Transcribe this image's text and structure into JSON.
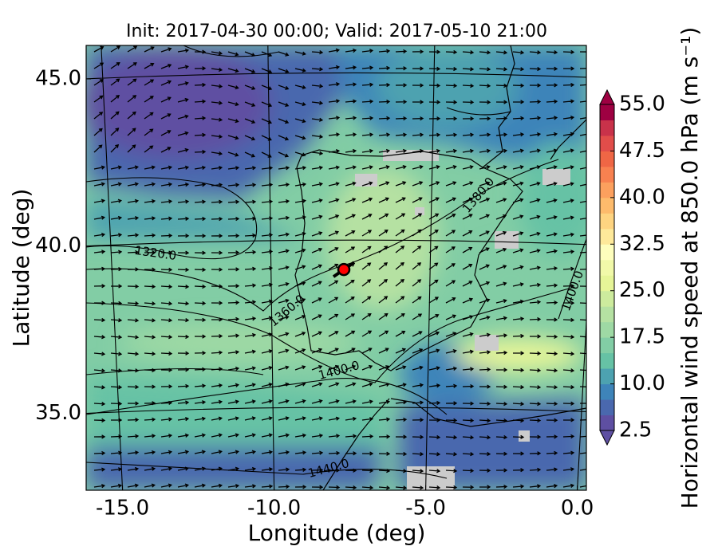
{
  "chart_data": {
    "type": "map",
    "title": "Init: 2017-04-30 00:00; Valid: 2017-05-10 21:00",
    "xlabel": "Longitude (deg)",
    "ylabel": "Latitude (deg)",
    "xlim": [
      -16.2,
      0.3
    ],
    "ylim": [
      32.7,
      46.0
    ],
    "xticks": [
      {
        "value": -15,
        "label": "-15.0"
      },
      {
        "value": -10,
        "label": "-10.0"
      },
      {
        "value": -5,
        "label": "-5.0"
      },
      {
        "value": 0,
        "label": "0.0"
      }
    ],
    "yticks": [
      {
        "value": 35,
        "label": "35.0"
      },
      {
        "value": 40,
        "label": "40.0"
      },
      {
        "value": 45,
        "label": "45.0"
      }
    ],
    "grid": true,
    "marker": {
      "x": -7.7,
      "y": 39.3,
      "color": "#ff0000"
    },
    "contour_labels": [
      "1320.0",
      "1360.0",
      "1380.0",
      "1400.0",
      "1400.0",
      "1440.0"
    ],
    "colorbar": {
      "label": "Horizontal wind speed at 850.0 hPa (m s⁻¹)",
      "lim": [
        2.5,
        55.0
      ],
      "ticks": [
        2.5,
        {
          "value": 10,
          "label": "10.0"
        },
        17.5,
        {
          "value": 25,
          "label": "25.0"
        },
        32.5,
        {
          "value": 40,
          "label": "40.0"
        },
        47.5,
        {
          "value": 55,
          "label": "55.0"
        }
      ],
      "colors": [
        "#5e4fa2",
        "#4a68ae",
        "#3e84b9",
        "#4da2b0",
        "#66c2a5",
        "#82cda5",
        "#9ed9a4",
        "#b5e1a2",
        "#cdeb9d",
        "#e6f598",
        "#f1f9a9",
        "#fefebd",
        "#fee99a",
        "#fed481",
        "#fdbb6c",
        "#fca05e",
        "#f88150",
        "#ef6645",
        "#e14d4a",
        "#c9324a",
        "#9e0142"
      ]
    }
  }
}
